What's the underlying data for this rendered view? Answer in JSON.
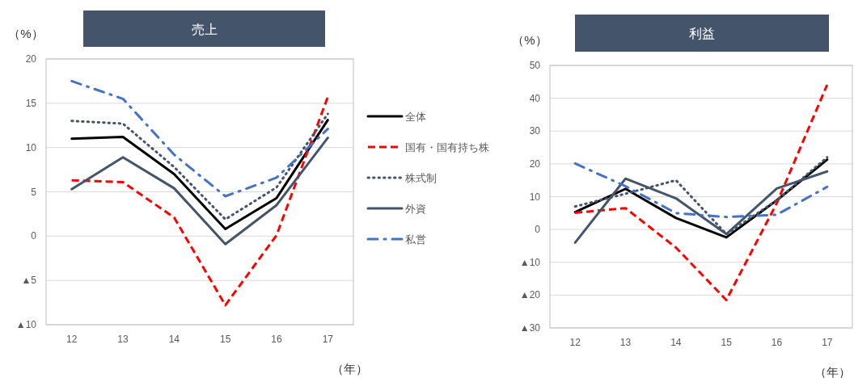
{
  "chart_data": [
    {
      "type": "line",
      "title": "売上",
      "ylabel": "（%）",
      "xlabel": "（年）",
      "categories": [
        "12",
        "13",
        "14",
        "15",
        "16",
        "17"
      ],
      "ylim": [
        -10,
        20
      ],
      "yticks": [
        {
          "value": -10,
          "label": "▲10"
        },
        {
          "value": -5,
          "label": "▲5"
        },
        0,
        5,
        10,
        15,
        20
      ],
      "grid": "y",
      "legend": "right",
      "series": [
        {
          "name": "全体",
          "color": "#000000",
          "line_style": "solid",
          "values": [
            11,
            11.2,
            7,
            0.8,
            4.3,
            13.1
          ]
        },
        {
          "name": "国有・国有持ち株",
          "color": "#ff0000",
          "line_style": "dashed",
          "values": [
            6.3,
            6.1,
            2.1,
            -7.8,
            0.1,
            15.7
          ]
        },
        {
          "name": "株式制",
          "color": "#44546a",
          "line_style": "dotted",
          "values": [
            13,
            12.7,
            7.8,
            1.9,
            5.5,
            13.8
          ]
        },
        {
          "name": "外資",
          "color": "#44546a",
          "line_style": "solid",
          "values": [
            5.3,
            8.9,
            5.4,
            -0.9,
            3.5,
            11.1
          ]
        },
        {
          "name": "私営",
          "color": "#4472c4",
          "line_style": "dashdot",
          "values": [
            17.5,
            15.5,
            9.2,
            4.5,
            6.6,
            12.1
          ]
        }
      ]
    },
    {
      "type": "line",
      "title": "利益",
      "ylabel": "（%）",
      "xlabel": "（年）",
      "categories": [
        "12",
        "13",
        "14",
        "15",
        "16",
        "17"
      ],
      "ylim": [
        -30,
        50
      ],
      "yticks": [
        {
          "value": -30,
          "label": "▲30"
        },
        {
          "value": -20,
          "label": "▲20"
        },
        {
          "value": -10,
          "label": "▲10"
        },
        0,
        10,
        20,
        30,
        40,
        50
      ],
      "grid": "y",
      "series": [
        {
          "color": "#000000",
          "line_style": "solid",
          "values": [
            5.3,
            12.4,
            3.5,
            -2.4,
            8.9,
            21.3
          ]
        },
        {
          "color": "#ff0000",
          "line_style": "dashed",
          "values": [
            5.1,
            6.5,
            -5.5,
            -21.5,
            8,
            44.1
          ]
        },
        {
          "color": "#44546a",
          "line_style": "dotted",
          "values": [
            7,
            10.9,
            15,
            -1.4,
            8.9,
            22
          ]
        },
        {
          "color": "#44546a",
          "line_style": "solid",
          "values": [
            -4,
            15.5,
            9.5,
            -1.4,
            12.5,
            17.7
          ]
        },
        {
          "color": "#4472c4",
          "line_style": "dashdot",
          "values": [
            20.1,
            13.2,
            5,
            3.8,
            4.5,
            13
          ]
        }
      ]
    }
  ]
}
